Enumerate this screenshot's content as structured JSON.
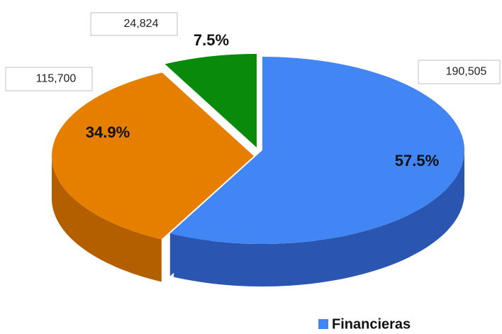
{
  "chart_data": {
    "type": "pie",
    "categories": [
      "Financieras",
      null,
      null
    ],
    "values": [
      190505,
      115700,
      24824
    ],
    "value_labels": [
      "190,505",
      "115,700",
      "24,824"
    ],
    "percents": [
      57.5,
      34.9,
      7.5
    ],
    "percent_labels": [
      "57.5%",
      "34.9%",
      "7.5%"
    ],
    "colors": [
      "#4285f4",
      "#e67e00",
      "#0a8a0a"
    ],
    "side_colors": [
      "#2a55b0",
      "#b35f00",
      "#066006"
    ],
    "legend": "bottom"
  }
}
